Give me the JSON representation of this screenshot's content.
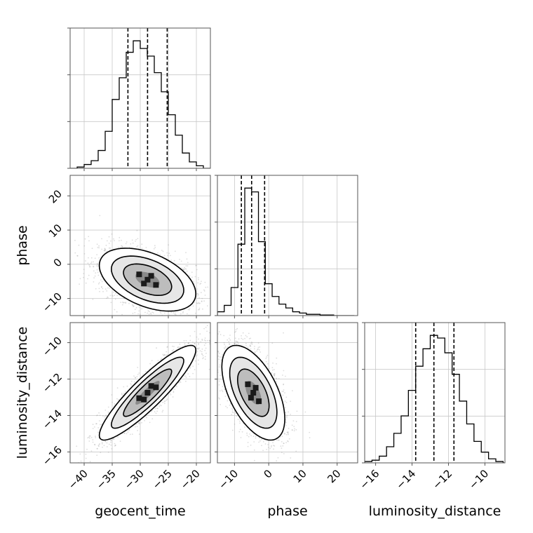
{
  "chart_data": {
    "type": "corner",
    "parameters": [
      {
        "name": "geocent_time",
        "range": [
          -42.5,
          -17.5
        ],
        "ticks": [
          -40,
          -35,
          -30,
          -25,
          -20
        ],
        "quantiles": [
          -32.2,
          -28.7,
          -25.2
        ]
      },
      {
        "name": "phase",
        "range": [
          -15,
          26
        ],
        "ticks": [
          -10,
          0,
          10,
          20
        ],
        "quantiles": [
          -8.0,
          -5.0,
          -1.2
        ]
      },
      {
        "name": "luminosity_distance",
        "range": [
          -16.6,
          -8.9
        ],
        "ticks": [
          -16,
          -14,
          -12,
          -10
        ],
        "quantiles": [
          -13.8,
          -12.8,
          -11.7
        ]
      }
    ],
    "tick_labels": {
      "geocent_time": [
        "−40",
        "−35",
        "−30",
        "−25",
        "−20"
      ],
      "phase": [
        "−10",
        "0",
        "10",
        "20"
      ],
      "luminosity_distance": [
        "−16",
        "−14",
        "−12",
        "−10"
      ]
    },
    "histograms": {
      "geocent_time": {
        "edges": [
          -42.5,
          -41.25,
          -40.0,
          -38.75,
          -37.5,
          -36.25,
          -35.0,
          -33.75,
          -32.5,
          -31.25,
          -30.0,
          -28.75,
          -27.5,
          -26.25,
          -25.0,
          -23.75,
          -22.5,
          -21.25,
          -20.0,
          -18.75,
          -17.5
        ],
        "counts": [
          0,
          1,
          3,
          6,
          14,
          29,
          54,
          71,
          91,
          100,
          94,
          88,
          75,
          60,
          42,
          26,
          12,
          5,
          2,
          0
        ]
      },
      "phase": {
        "edges": [
          -15,
          -13,
          -11,
          -9,
          -7,
          -5,
          -3,
          -1,
          1,
          3,
          5,
          7,
          9,
          11,
          13,
          15,
          17,
          19,
          21,
          23,
          25
        ],
        "counts": [
          3,
          8,
          22,
          56,
          100,
          97,
          58,
          25,
          15,
          9,
          6,
          3,
          2,
          1,
          1,
          0.5,
          0.5,
          0,
          0,
          0
        ]
      },
      "luminosity_distance": {
        "edges": [
          -16.6,
          -16.2,
          -15.8,
          -15.4,
          -15.0,
          -14.6,
          -14.2,
          -13.8,
          -13.4,
          -13.0,
          -12.6,
          -12.2,
          -11.8,
          -11.4,
          -11.0,
          -10.6,
          -10.2,
          -9.8,
          -9.4,
          -9.0,
          -8.6
        ],
        "counts": [
          1,
          2,
          5,
          12,
          22,
          35,
          54,
          72,
          85,
          95,
          93,
          82,
          66,
          46,
          29,
          16,
          8,
          3,
          1,
          0
        ]
      }
    },
    "pairs": [
      {
        "x": "geocent_time",
        "y": "phase",
        "mean": [
          -28.7,
          -4.5
        ],
        "sd": [
          4.3,
          4.6
        ],
        "rho": -0.45
      },
      {
        "x": "geocent_time",
        "y": "luminosity_distance",
        "mean": [
          -28.7,
          -12.75
        ],
        "sd": [
          4.3,
          1.3
        ],
        "rho": 0.9
      },
      {
        "x": "phase",
        "y": "luminosity_distance",
        "mean": [
          -4.5,
          -12.75
        ],
        "sd": [
          4.6,
          1.3
        ],
        "rho": -0.55
      }
    ],
    "contour_levels": [
      0.5,
      1.0,
      1.5,
      2.0
    ],
    "grid": true,
    "legend": "none",
    "colors": {
      "line": "#000000",
      "points": "#9e9e9e",
      "grid": "#c8c8c8",
      "axis": "#555555"
    }
  }
}
